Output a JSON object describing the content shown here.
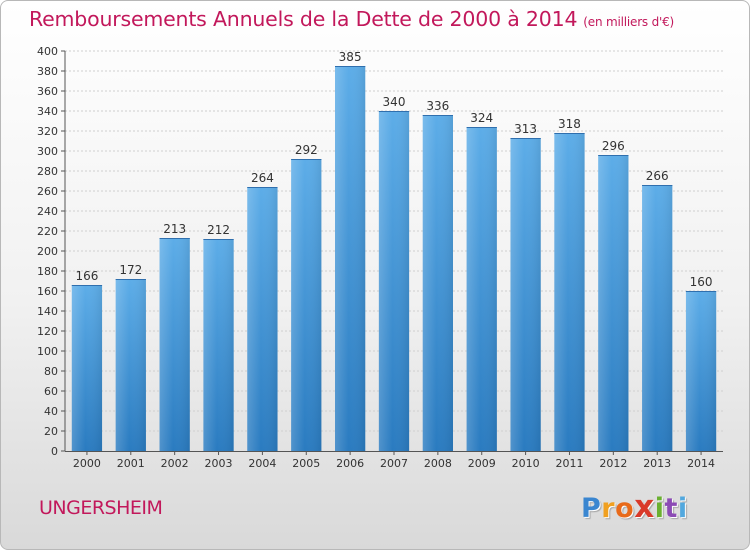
{
  "chart_data": {
    "type": "bar",
    "title": "Remboursements Annuels de la Dette de 2000 à 2014",
    "subtitle": "(en milliers d'€)",
    "categories": [
      "2000",
      "2001",
      "2002",
      "2003",
      "2004",
      "2005",
      "2006",
      "2007",
      "2008",
      "2009",
      "2010",
      "2011",
      "2012",
      "2013",
      "2014"
    ],
    "values": [
      166,
      172,
      213,
      212,
      264,
      292,
      385,
      340,
      336,
      324,
      313,
      318,
      296,
      266,
      160
    ],
    "data_labels": [
      "166",
      "172",
      "213",
      "212",
      "264",
      "292",
      "385",
      "340",
      "336",
      "324",
      "313",
      "318",
      "296",
      "266",
      "160"
    ],
    "ylim": [
      0,
      400
    ],
    "ytick_step": 20,
    "yticks": [
      "0",
      "20",
      "40",
      "60",
      "80",
      "100",
      "120",
      "140",
      "160",
      "180",
      "200",
      "220",
      "240",
      "260",
      "280",
      "300",
      "320",
      "340",
      "360",
      "380",
      "400"
    ],
    "xlabel": "",
    "ylabel": "",
    "grid": true,
    "colors": {
      "bar_light": "#5dade8",
      "bar_dark": "#2a7bc0",
      "title": "#c2185b"
    }
  },
  "footer": {
    "town": "UNGERSHEIM",
    "brand_letters": [
      "P",
      "r",
      "o",
      "x",
      "i",
      "t",
      "i"
    ],
    "brand_colors": [
      "#3a86d0",
      "#f0a020",
      "#e86a1a",
      "#d93a2a",
      "#6ab030",
      "#8c4bb5",
      "#52a8de"
    ]
  }
}
